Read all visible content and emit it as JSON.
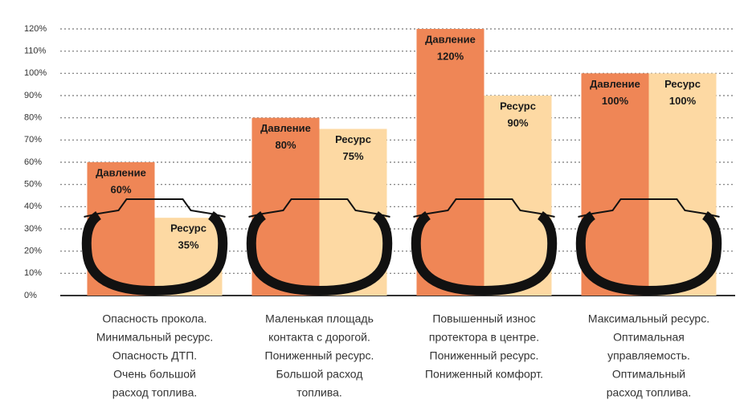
{
  "chart_data": {
    "type": "bar",
    "categories": [
      null,
      null,
      null,
      null
    ],
    "series": [
      {
        "name": "Давление",
        "color": "#ef8656",
        "values": [
          60,
          80,
          120,
          100
        ],
        "value_labels": [
          "60%",
          "80%",
          "120%",
          "100%"
        ]
      },
      {
        "name": "Ресурс",
        "color": "#fdd9a3",
        "values": [
          35,
          75,
          90,
          100
        ],
        "value_labels": [
          "35%",
          "75%",
          "90%",
          "100%"
        ]
      }
    ],
    "ylim": [
      0,
      120
    ],
    "yticks": [
      {
        "value": 0,
        "label": "0%"
      },
      {
        "value": 10,
        "label": "10%"
      },
      {
        "value": 20,
        "label": "20%"
      },
      {
        "value": 30,
        "label": "30%"
      },
      {
        "value": 40,
        "label": "40%"
      },
      {
        "value": 50,
        "label": "50%"
      },
      {
        "value": 60,
        "label": "60%"
      },
      {
        "value": 70,
        "label": "70%"
      },
      {
        "value": 80,
        "label": "80%"
      },
      {
        "value": 90,
        "label": "90%"
      },
      {
        "value": 100,
        "label": "100%"
      },
      {
        "value": 110,
        "label": "110%"
      },
      {
        "value": 120,
        "label": "120%"
      }
    ],
    "grid": true,
    "descriptions": [
      [
        "Опасность прокола.",
        "Минимальный ресурс.",
        "Опасность ДТП.",
        "Очень большой",
        "расход топлива."
      ],
      [
        "Маленькая площадь",
        "контакта с дорогой.",
        "Пониженный ресурс.",
        "Большой расход",
        "топлива."
      ],
      [
        "Повышенный износ",
        "протектора в центре.",
        "Пониженный ресурс.",
        "Пониженный комфорт."
      ],
      [
        "Максимальный ресурс.",
        "Оптимальная",
        "управляемость.",
        "Оптимальный",
        "расход топлива."
      ]
    ]
  }
}
